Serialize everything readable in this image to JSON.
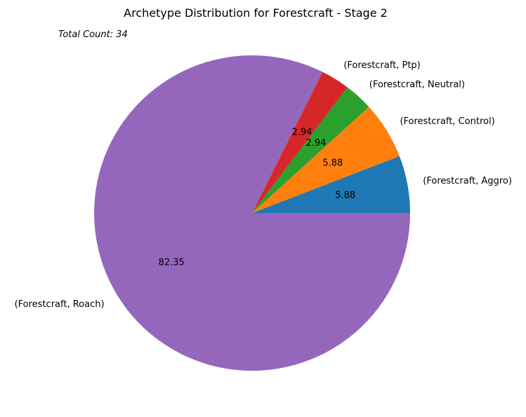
{
  "chart_data": {
    "type": "pie",
    "title": "Archetype Distribution for Forestcraft - Stage 2",
    "subtitle": "Total Count: 34",
    "slices": [
      {
        "label": "(Forestcraft, Aggro)",
        "value": 5.88,
        "display": "5.88",
        "color": "#1f77b4"
      },
      {
        "label": "(Forestcraft, Control)",
        "value": 5.88,
        "display": "5.88",
        "color": "#ff7f0e"
      },
      {
        "label": "(Forestcraft, Neutral)",
        "value": 2.94,
        "display": "2.94",
        "color": "#2ca02c"
      },
      {
        "label": "(Forestcraft, Ptp)",
        "value": 2.94,
        "display": "2.94",
        "color": "#d62728"
      },
      {
        "label": "(Forestcraft, Roach)",
        "value": 82.35,
        "display": "82.35",
        "color": "#9467bd"
      }
    ],
    "start_angle_deg": 0,
    "direction": "counterclockwise"
  }
}
